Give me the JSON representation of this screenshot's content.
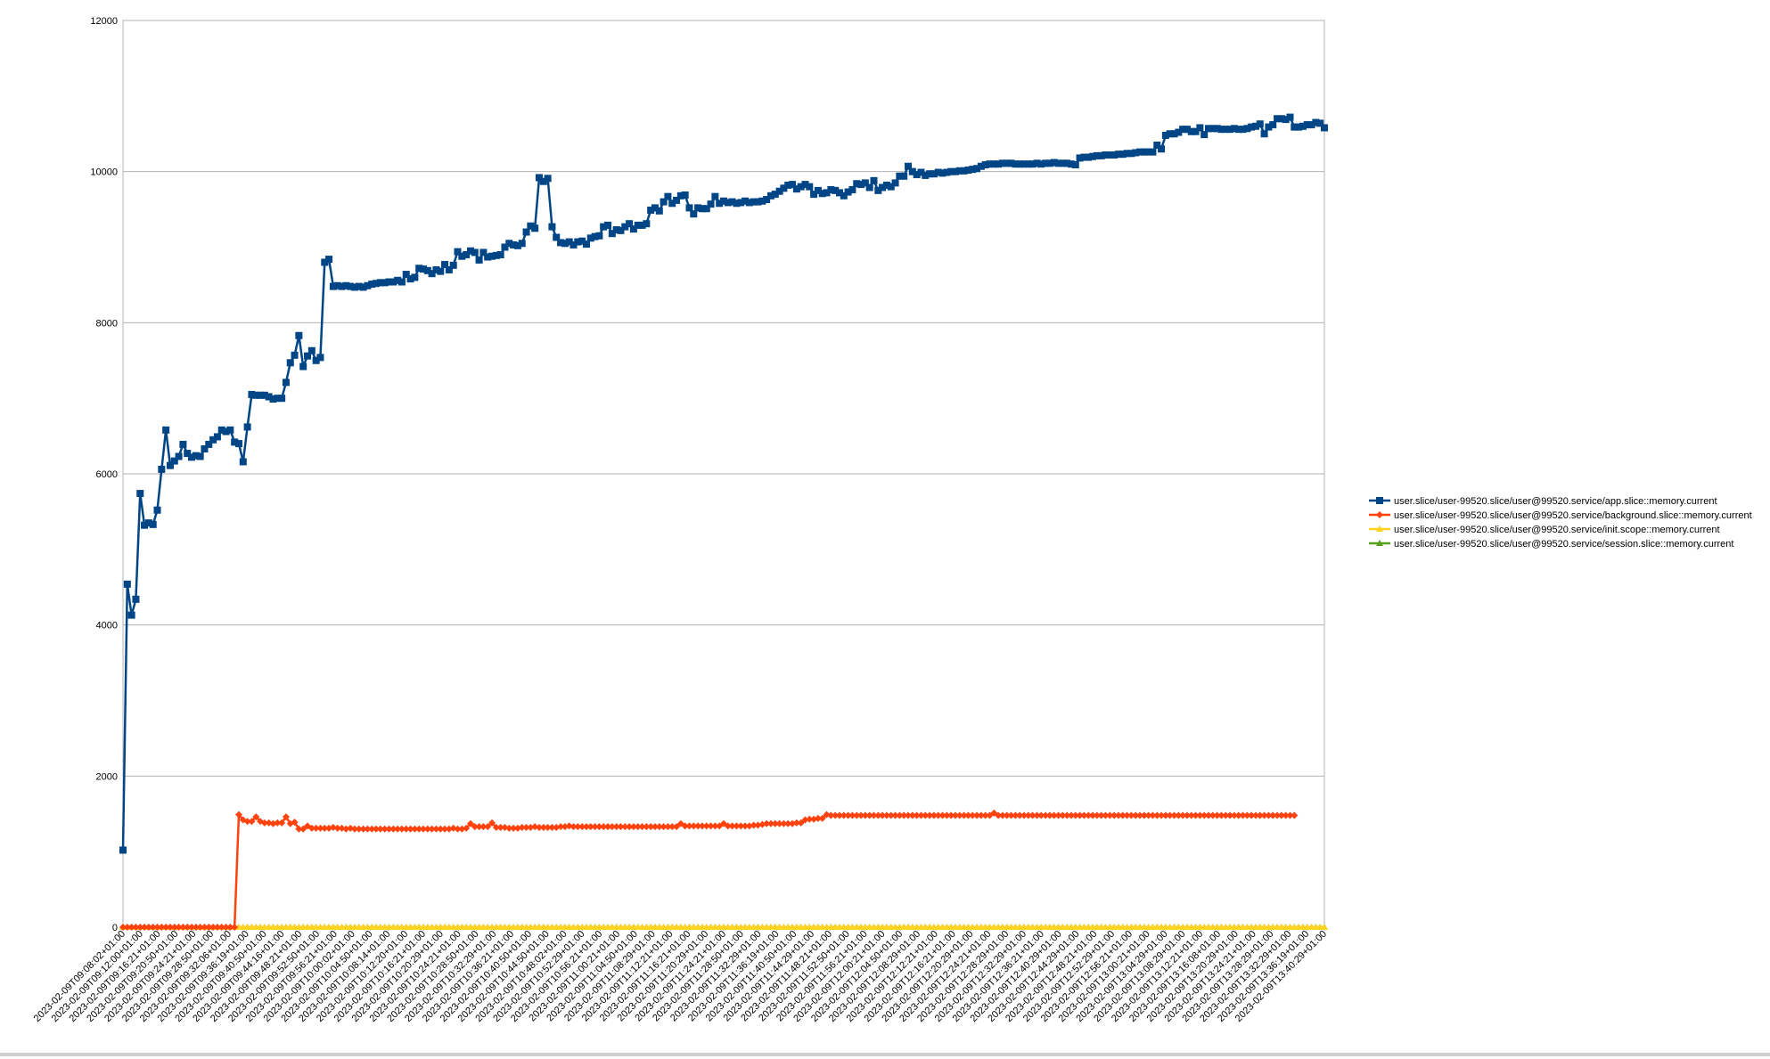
{
  "chart_data": {
    "type": "line",
    "title": "",
    "xlabel": "",
    "ylabel": "",
    "ylim": [
      0,
      12000
    ],
    "yticks": [
      0,
      2000,
      4000,
      6000,
      8000,
      10000,
      12000
    ],
    "grid": "horizontal",
    "legend_position": "right",
    "x_tick_labels": [
      "2023-02-09T09:08:02+01:00",
      "2023-02-09T09:12:00+01:00",
      "2023-02-09T09:16:21+01:00",
      "2023-02-09T09:20:50+01:00",
      "2023-02-09T09:24:21+01:00",
      "2023-02-09T09:28:50+01:00",
      "2023-02-09T09:32:06+01:00",
      "2023-02-09T09:36:19+01:00",
      "2023-02-09T09:40:50+01:00",
      "2023-02-09T09:44:16+01:00",
      "2023-02-09T09:48:21+01:00",
      "2023-02-09T09:52:50+01:00",
      "2023-02-09T09:56:21+01:00",
      "2023-02-09T10:00:02+01:00",
      "2023-02-09T10:04:50+01:00",
      "2023-02-09T10:08:14+01:00",
      "2023-02-09T10:12:20+01:00",
      "2023-02-09T10:16:21+01:00",
      "2023-02-09T10:20:29+01:00",
      "2023-02-09T10:24:21+01:00",
      "2023-02-09T10:28:50+01:00",
      "2023-02-09T10:32:29+01:00",
      "2023-02-09T10:36:21+01:00",
      "2023-02-09T10:40:50+01:00",
      "2023-02-09T10:44:50+01:00",
      "2023-02-09T10:48:02+01:00",
      "2023-02-09T10:52:29+01:00",
      "2023-02-09T10:56:21+01:00",
      "2023-02-09T11:00:21+01:00",
      "2023-02-09T11:04:50+01:00",
      "2023-02-09T11:08:29+01:00",
      "2023-02-09T11:12:21+01:00",
      "2023-02-09T11:16:21+01:00",
      "2023-02-09T11:20:29+01:00",
      "2023-02-09T11:24:21+01:00",
      "2023-02-09T11:28:50+01:00",
      "2023-02-09T11:32:29+01:00",
      "2023-02-09T11:36:19+01:00",
      "2023-02-09T11:40:50+01:00",
      "2023-02-09T11:44:29+01:00",
      "2023-02-09T11:48:21+01:00",
      "2023-02-09T11:52:50+01:00",
      "2023-02-09T11:56:21+01:00",
      "2023-02-09T12:00:21+01:00",
      "2023-02-09T12:04:50+01:00",
      "2023-02-09T12:08:29+01:00",
      "2023-02-09T12:12:21+01:00",
      "2023-02-09T12:16:21+01:00",
      "2023-02-09T12:20:29+01:00",
      "2023-02-09T12:24:21+01:00",
      "2023-02-09T12:28:29+01:00",
      "2023-02-09T12:32:29+01:00",
      "2023-02-09T12:36:21+01:00",
      "2023-02-09T12:40:29+01:00",
      "2023-02-09T12:44:29+01:00",
      "2023-02-09T12:48:21+01:00",
      "2023-02-09T12:52:29+01:00",
      "2023-02-09T12:56:21+01:00",
      "2023-02-09T13:00:21+01:00",
      "2023-02-09T13:04:29+01:00",
      "2023-02-09T13:08:29+01:00",
      "2023-02-09T13:12:21+01:00",
      "2023-02-09T13:16:08+01:00",
      "2023-02-09T13:20:29+01:00",
      "2023-02-09T13:24:21+01:00",
      "2023-02-09T13:28:29+01:00",
      "2023-02-09T13:32:29+01:00",
      "2023-02-09T13:36:19+01:00",
      "2023-02-09T13:40:29+01:00"
    ],
    "series": [
      {
        "name": "user.slice/user-99520.slice/user@99520.service/app.slice::memory.current",
        "color": "#004586",
        "marker": "square",
        "values": [
          1020,
          4540,
          4130,
          4340,
          5740,
          5320,
          5350,
          5330,
          5520,
          6060,
          6580,
          6110,
          6170,
          6230,
          6390,
          6270,
          6220,
          6240,
          6230,
          6330,
          6390,
          6450,
          6490,
          6580,
          6560,
          6580,
          6420,
          6400,
          6160,
          6620,
          7050,
          7040,
          7040,
          7040,
          7020,
          6990,
          7000,
          7000,
          7210,
          7470,
          7570,
          7830,
          7420,
          7560,
          7630,
          7500,
          7540,
          8800,
          8840,
          8480,
          8490,
          8480,
          8490,
          8480,
          8470,
          8480,
          8470,
          8490,
          8510,
          8520,
          8530,
          8530,
          8540,
          8540,
          8560,
          8540,
          8640,
          8580,
          8600,
          8720,
          8710,
          8690,
          8650,
          8700,
          8680,
          8770,
          8700,
          8760,
          8940,
          8880,
          8900,
          8950,
          8930,
          8830,
          8930,
          8870,
          8880,
          8890,
          8900,
          9000,
          9050,
          9030,
          9020,
          9050,
          9200,
          9280,
          9250,
          9920,
          9870,
          9910,
          9270,
          9130,
          9060,
          9050,
          9070,
          9030,
          9070,
          9080,
          9040,
          9120,
          9140,
          9150,
          9270,
          9290,
          9180,
          9230,
          9220,
          9270,
          9310,
          9240,
          9290,
          9290,
          9310,
          9490,
          9520,
          9480,
          9600,
          9670,
          9580,
          9620,
          9680,
          9690,
          9520,
          9440,
          9520,
          9510,
          9510,
          9570,
          9670,
          9580,
          9610,
          9590,
          9600,
          9580,
          9590,
          9610,
          9590,
          9600,
          9600,
          9610,
          9630,
          9680,
          9700,
          9740,
          9780,
          9820,
          9830,
          9770,
          9800,
          9830,
          9800,
          9700,
          9750,
          9710,
          9720,
          9760,
          9750,
          9720,
          9680,
          9730,
          9760,
          9840,
          9830,
          9850,
          9790,
          9880,
          9750,
          9790,
          9820,
          9800,
          9850,
          9940,
          9940,
          10070,
          10000,
          9960,
          9990,
          9950,
          9970,
          9970,
          9990,
          9980,
          9990,
          10000,
          10000,
          10010,
          10010,
          10020,
          10030,
          10040,
          10070,
          10090,
          10100,
          10100,
          10100,
          10110,
          10110,
          10110,
          10100,
          10100,
          10100,
          10100,
          10100,
          10110,
          10100,
          10110,
          10110,
          10120,
          10110,
          10110,
          10110,
          10100,
          10090,
          10180,
          10190,
          10190,
          10200,
          10210,
          10210,
          10220,
          10220,
          10220,
          10230,
          10230,
          10240,
          10240,
          10250,
          10260,
          10260,
          10260,
          10260,
          10350,
          10300,
          10480,
          10500,
          10500,
          10520,
          10560,
          10560,
          10530,
          10530,
          10580,
          10490,
          10570,
          10570,
          10570,
          10560,
          10560,
          10560,
          10570,
          10560,
          10560,
          10570,
          10590,
          10600,
          10630,
          10500,
          10590,
          10620,
          10700,
          10700,
          10690,
          10720,
          10590,
          10590,
          10600,
          10620,
          10620,
          10650,
          10640,
          10580
        ]
      },
      {
        "name": "user.slice/user-99520.slice/user@99520.service/background.slice::memory.current",
        "color": "#ff420e",
        "marker": "diamond",
        "values": [
          0,
          0,
          0,
          0,
          0,
          0,
          0,
          0,
          0,
          0,
          0,
          0,
          0,
          0,
          0,
          0,
          0,
          0,
          0,
          0,
          0,
          0,
          0,
          0,
          0,
          0,
          0,
          1490,
          1420,
          1400,
          1400,
          1460,
          1400,
          1380,
          1380,
          1370,
          1380,
          1380,
          1460,
          1370,
          1390,
          1300,
          1300,
          1340,
          1310,
          1310,
          1310,
          1310,
          1310,
          1320,
          1310,
          1310,
          1300,
          1310,
          1300,
          1300,
          1300,
          1300,
          1300,
          1300,
          1300,
          1300,
          1300,
          1300,
          1300,
          1300,
          1300,
          1300,
          1300,
          1300,
          1300,
          1300,
          1300,
          1300,
          1300,
          1300,
          1300,
          1310,
          1300,
          1300,
          1310,
          1370,
          1330,
          1330,
          1330,
          1330,
          1380,
          1320,
          1320,
          1320,
          1310,
          1310,
          1310,
          1320,
          1320,
          1320,
          1330,
          1320,
          1320,
          1320,
          1320,
          1320,
          1330,
          1330,
          1340,
          1330,
          1330,
          1330,
          1330,
          1330,
          1330,
          1330,
          1330,
          1330,
          1330,
          1330,
          1330,
          1330,
          1330,
          1330,
          1330,
          1330,
          1330,
          1330,
          1330,
          1330,
          1330,
          1330,
          1330,
          1330,
          1370,
          1340,
          1340,
          1340,
          1340,
          1340,
          1340,
          1340,
          1340,
          1340,
          1370,
          1340,
          1340,
          1340,
          1340,
          1340,
          1340,
          1350,
          1350,
          1360,
          1370,
          1370,
          1370,
          1370,
          1370,
          1370,
          1370,
          1380,
          1380,
          1420,
          1430,
          1430,
          1440,
          1440,
          1490,
          1480,
          1480,
          1480,
          1480,
          1480,
          1480,
          1480,
          1480,
          1480,
          1480,
          1480,
          1480,
          1480,
          1480,
          1480,
          1480,
          1480,
          1480,
          1480,
          1480,
          1480,
          1480,
          1480,
          1480,
          1480,
          1480,
          1480,
          1480,
          1480,
          1480,
          1480,
          1480,
          1480,
          1480,
          1480,
          1480,
          1480,
          1480,
          1510,
          1480,
          1480,
          1480,
          1480,
          1480,
          1480,
          1480,
          1480,
          1480,
          1480,
          1480,
          1480,
          1480,
          1480,
          1480,
          1480,
          1480,
          1480,
          1480,
          1480,
          1480,
          1480,
          1480,
          1480,
          1480,
          1480,
          1480,
          1480,
          1480,
          1480,
          1480,
          1480,
          1480,
          1480,
          1480,
          1480,
          1480,
          1480,
          1480,
          1480,
          1480,
          1480,
          1480,
          1480,
          1480,
          1480,
          1480,
          1480,
          1480,
          1480,
          1480,
          1480,
          1480,
          1480,
          1480,
          1480,
          1480,
          1480,
          1480,
          1480,
          1480,
          1480,
          1480,
          1480,
          1480,
          1480,
          1480,
          1480,
          1480,
          1480
        ]
      },
      {
        "name": "user.slice/user-99520.slice/user@99520.service/init.scope::memory.current",
        "color": "#ffd320",
        "marker": "triangle",
        "constant": 0
      },
      {
        "name": "user.slice/user-99520.slice/user@99520.service/session.slice::memory.current",
        "color": "#579d1c",
        "marker": "triangle",
        "constant": 0
      }
    ]
  }
}
